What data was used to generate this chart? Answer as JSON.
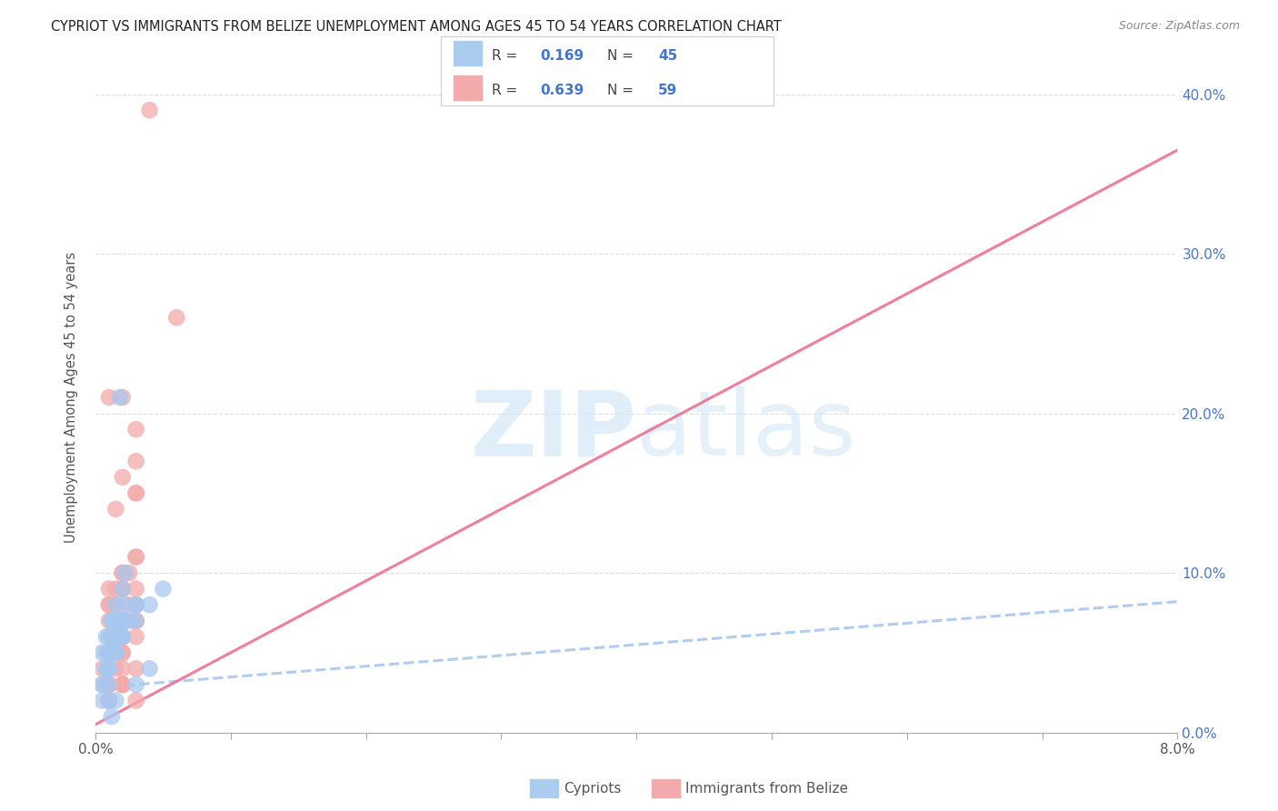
{
  "title": "CYPRIOT VS IMMIGRANTS FROM BELIZE UNEMPLOYMENT AMONG AGES 45 TO 54 YEARS CORRELATION CHART",
  "source": "Source: ZipAtlas.com",
  "ylabel": "Unemployment Among Ages 45 to 54 years",
  "x_min": 0.0,
  "x_max": 0.08,
  "y_min": 0.0,
  "y_max": 0.42,
  "x_ticks": [
    0.0,
    0.01,
    0.02,
    0.03,
    0.04,
    0.05,
    0.06,
    0.07,
    0.08
  ],
  "y_ticks": [
    0.0,
    0.1,
    0.2,
    0.3,
    0.4
  ],
  "y_tick_labels_right": [
    "0.0%",
    "10.0%",
    "20.0%",
    "30.0%",
    "40.0%"
  ],
  "legend_r1_val": "0.169",
  "legend_n1_val": "45",
  "legend_r2_val": "0.639",
  "legend_n2_val": "59",
  "color_cypriot": "#A8C8F0",
  "color_belize": "#F4AAAA",
  "color_cypriot_line": "#A8C8F0",
  "color_belize_line": "#F07090",
  "color_text_blue": "#4477CC",
  "cypriot_line_x": [
    0.0,
    0.08
  ],
  "cypriot_line_y": [
    0.028,
    0.082
  ],
  "belize_line_x": [
    0.0,
    0.08
  ],
  "belize_line_y": [
    0.005,
    0.365
  ],
  "cypriot_scatter_x": [
    0.0005,
    0.001,
    0.0008,
    0.0012,
    0.0015,
    0.002,
    0.0018,
    0.0022,
    0.0005,
    0.001,
    0.0015,
    0.002,
    0.0025,
    0.003,
    0.0008,
    0.0012,
    0.0018,
    0.0022,
    0.0005,
    0.001,
    0.0015,
    0.002,
    0.003,
    0.0008,
    0.0012,
    0.0018,
    0.001,
    0.0015,
    0.002,
    0.0005,
    0.001,
    0.0008,
    0.0012,
    0.0015,
    0.002,
    0.0018,
    0.0022,
    0.001,
    0.0012,
    0.0015,
    0.003,
    0.004,
    0.005,
    0.003,
    0.004
  ],
  "cypriot_scatter_y": [
    0.05,
    0.06,
    0.04,
    0.07,
    0.05,
    0.06,
    0.07,
    0.08,
    0.03,
    0.04,
    0.06,
    0.07,
    0.07,
    0.08,
    0.04,
    0.05,
    0.06,
    0.07,
    0.02,
    0.03,
    0.05,
    0.06,
    0.07,
    0.05,
    0.06,
    0.07,
    0.04,
    0.05,
    0.06,
    0.03,
    0.05,
    0.06,
    0.07,
    0.08,
    0.09,
    0.21,
    0.1,
    0.02,
    0.01,
    0.02,
    0.08,
    0.08,
    0.09,
    0.03,
    0.04
  ],
  "belize_scatter_x": [
    0.0005,
    0.001,
    0.0008,
    0.0012,
    0.0015,
    0.002,
    0.001,
    0.0015,
    0.002,
    0.0025,
    0.003,
    0.001,
    0.0012,
    0.0015,
    0.002,
    0.003,
    0.001,
    0.0015,
    0.002,
    0.003,
    0.001,
    0.002,
    0.003,
    0.001,
    0.002,
    0.003,
    0.0025,
    0.003,
    0.002,
    0.0015,
    0.001,
    0.002,
    0.003,
    0.002,
    0.003,
    0.002,
    0.0015,
    0.001,
    0.002,
    0.003,
    0.004,
    0.001,
    0.002,
    0.001,
    0.002,
    0.003,
    0.001,
    0.002,
    0.001,
    0.002,
    0.003,
    0.001,
    0.002,
    0.003,
    0.001,
    0.002,
    0.003,
    0.006,
    0.001
  ],
  "belize_scatter_y": [
    0.04,
    0.05,
    0.03,
    0.06,
    0.05,
    0.06,
    0.05,
    0.06,
    0.07,
    0.08,
    0.09,
    0.04,
    0.05,
    0.09,
    0.1,
    0.15,
    0.07,
    0.08,
    0.09,
    0.17,
    0.08,
    0.09,
    0.11,
    0.09,
    0.16,
    0.19,
    0.1,
    0.11,
    0.1,
    0.14,
    0.08,
    0.21,
    0.15,
    0.09,
    0.07,
    0.06,
    0.04,
    0.03,
    0.05,
    0.08,
    0.39,
    0.02,
    0.03,
    0.02,
    0.03,
    0.06,
    0.02,
    0.04,
    0.03,
    0.05,
    0.07,
    0.02,
    0.03,
    0.02,
    0.02,
    0.03,
    0.04,
    0.26,
    0.21
  ]
}
